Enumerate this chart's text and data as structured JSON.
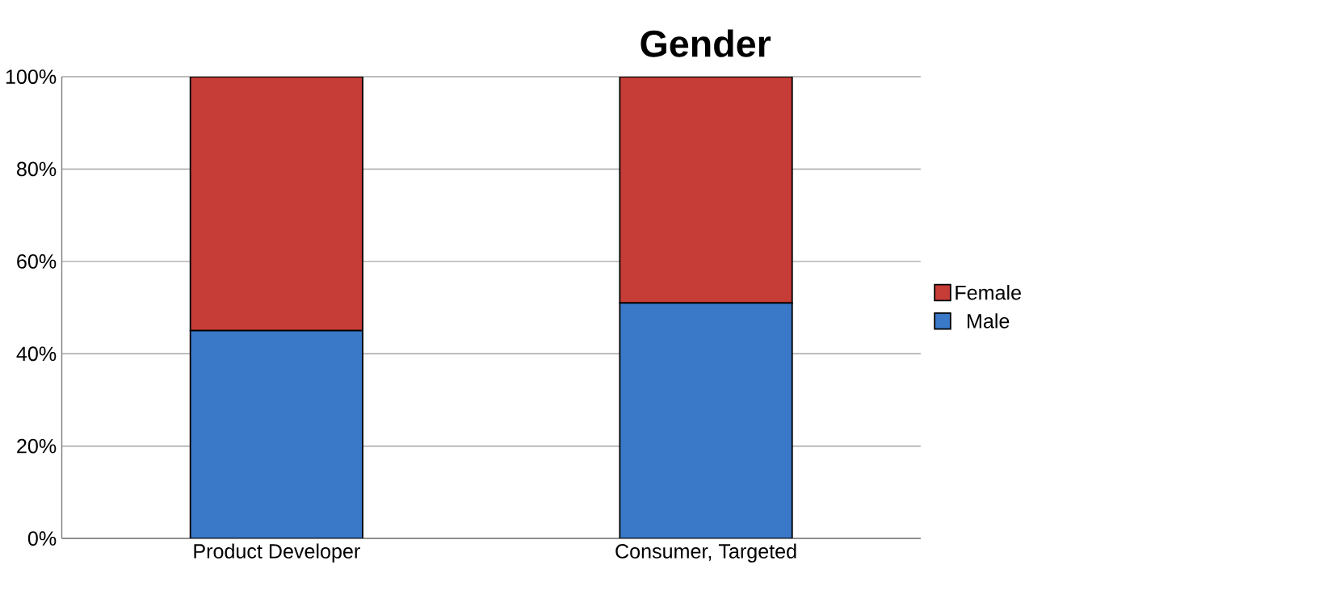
{
  "chart_data": {
    "type": "bar",
    "title": "Gender",
    "stacked": true,
    "categories": [
      "Product Developer",
      "Consumer, Targeted"
    ],
    "series": [
      {
        "name": "Male",
        "color": "#3a78c8",
        "values": [
          45,
          51
        ]
      },
      {
        "name": "Female",
        "color": "#c63c36",
        "values": [
          55,
          49
        ]
      }
    ],
    "ylim": [
      0,
      100
    ],
    "yticks": [
      {
        "value": 0,
        "label": "0%"
      },
      {
        "value": 20,
        "label": "20%"
      },
      {
        "value": 40,
        "label": "40%"
      },
      {
        "value": 60,
        "label": "60%"
      },
      {
        "value": 80,
        "label": "80%"
      },
      {
        "value": 100,
        "label": "100%"
      }
    ],
    "grid": "y",
    "legend": "right"
  }
}
